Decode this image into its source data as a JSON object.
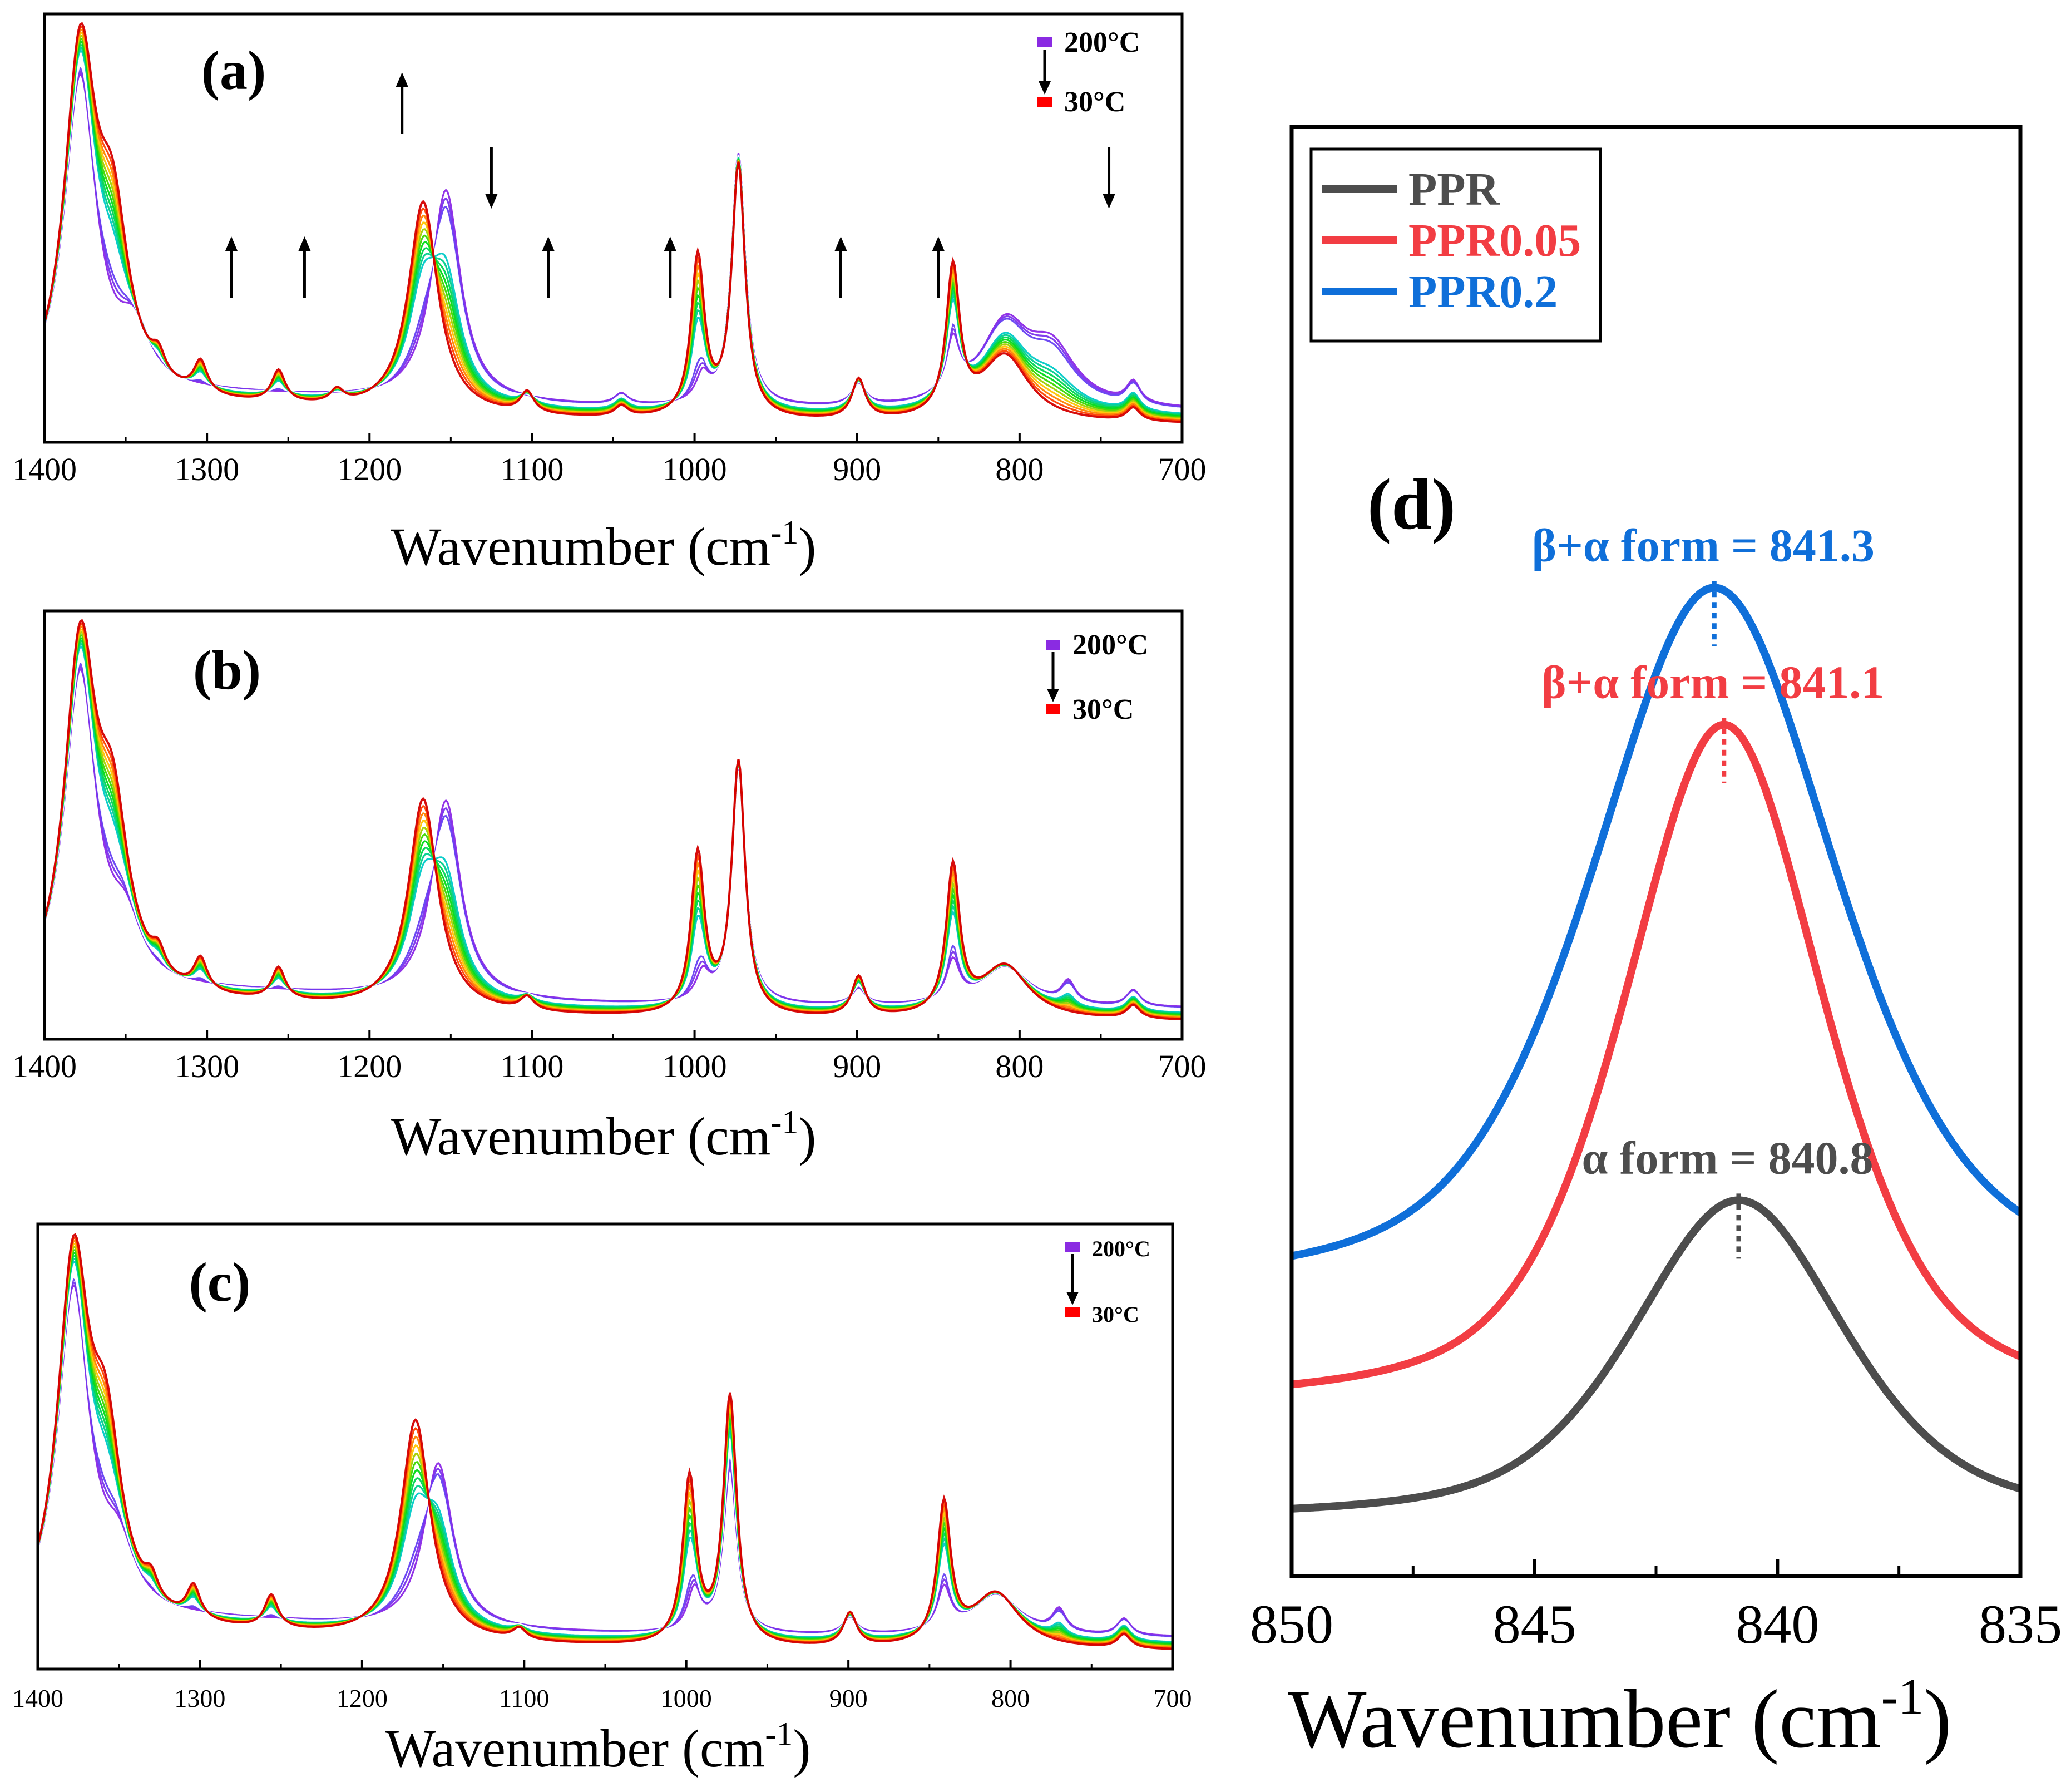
{
  "chart_data": [
    {
      "panel": "(a)",
      "type": "line",
      "xlabel": "Wavenumber (cm",
      "xlabel_sup": "-1",
      "xlabel_close": ")",
      "xlim": [
        1400,
        700
      ],
      "xticks": [
        "1400",
        "1300",
        "1200",
        "1100",
        "1000",
        "900",
        "800",
        "700"
      ],
      "legend": {
        "top": "200",
        "top_unit": "°C",
        "bottom": "30",
        "bottom_unit": "°C",
        "top_color": "#8a2be2",
        "bottom_color": "#ff0000"
      },
      "arrows": [
        {
          "x": 1285,
          "dir": "up"
        },
        {
          "x": 1240,
          "dir": "up"
        },
        {
          "x": 1180,
          "dir": "up"
        },
        {
          "x": 1125,
          "dir": "down"
        },
        {
          "x": 1090,
          "dir": "up"
        },
        {
          "x": 1015,
          "dir": "up"
        },
        {
          "x": 910,
          "dir": "up"
        },
        {
          "x": 850,
          "dir": "up"
        },
        {
          "x": 745,
          "dir": "down"
        }
      ],
      "peaks_cold": [
        [
          1378,
          1.3
        ],
        [
          1358,
          0.6
        ],
        [
          1330,
          0.08
        ],
        [
          1304,
          0.12
        ],
        [
          1256,
          0.12
        ],
        [
          1220,
          0.05
        ],
        [
          1167,
          0.8
        ],
        [
          1103,
          0.08
        ],
        [
          1045,
          0.04
        ],
        [
          998,
          0.6
        ],
        [
          973,
          0.95
        ],
        [
          899,
          0.15
        ],
        [
          841,
          0.55
        ],
        [
          809,
          0.25
        ],
        [
          730,
          0.05
        ]
      ],
      "peaks_hot": [
        [
          1378,
          1.2
        ],
        [
          1345,
          0.2
        ],
        [
          1153,
          0.8
        ],
        [
          1045,
          0.04
        ],
        [
          973,
          0.95
        ],
        [
          995,
          0.1
        ],
        [
          899,
          0.08
        ],
        [
          841,
          0.2
        ],
        [
          809,
          0.3
        ],
        [
          780,
          0.2
        ],
        [
          730,
          0.08
        ]
      ],
      "n_curves": 18
    },
    {
      "panel": "(b)",
      "type": "line",
      "xlabel": "Wavenumber (cm",
      "xlabel_sup": "-1",
      "xlabel_close": ")",
      "xlim": [
        1400,
        700
      ],
      "xticks": [
        "1400",
        "1300",
        "1200",
        "1100",
        "1000",
        "900",
        "800",
        "700"
      ],
      "legend": {
        "top": "200",
        "top_unit": "°C",
        "bottom": "30",
        "bottom_unit": "°C",
        "top_color": "#8a2be2",
        "bottom_color": "#ff0000"
      },
      "arrows": [],
      "peaks_cold": [
        [
          1378,
          1.3
        ],
        [
          1358,
          0.6
        ],
        [
          1330,
          0.08
        ],
        [
          1304,
          0.12
        ],
        [
          1256,
          0.12
        ],
        [
          1167,
          0.8
        ],
        [
          1103,
          0.05
        ],
        [
          998,
          0.6
        ],
        [
          973,
          0.95
        ],
        [
          899,
          0.15
        ],
        [
          841,
          0.55
        ],
        [
          809,
          0.2
        ],
        [
          730,
          0.05
        ]
      ],
      "peaks_hot": [
        [
          1378,
          1.2
        ],
        [
          1350,
          0.2
        ],
        [
          1153,
          0.75
        ],
        [
          973,
          0.9
        ],
        [
          995,
          0.1
        ],
        [
          899,
          0.06
        ],
        [
          841,
          0.15
        ],
        [
          809,
          0.15
        ],
        [
          770,
          0.08
        ],
        [
          730,
          0.06
        ]
      ],
      "n_curves": 18
    },
    {
      "panel": "(c)",
      "type": "line",
      "xlabel": "Wavenumber (cm",
      "xlabel_sup": "-1",
      "xlabel_close": ")",
      "xlim": [
        1400,
        700
      ],
      "xticks": [
        "1400",
        "1300",
        "1200",
        "1100",
        "1000",
        "900",
        "800",
        "700"
      ],
      "legend": {
        "top": "200",
        "top_unit": "°C",
        "bottom": "30",
        "bottom_unit": "°C",
        "top_color": "#8a2be2",
        "bottom_color": "#ff0000"
      },
      "arrows": [],
      "peaks_cold": [
        [
          1378,
          1.3
        ],
        [
          1358,
          0.6
        ],
        [
          1330,
          0.08
        ],
        [
          1304,
          0.12
        ],
        [
          1256,
          0.12
        ],
        [
          1167,
          0.8
        ],
        [
          1103,
          0.04
        ],
        [
          998,
          0.6
        ],
        [
          973,
          0.9
        ],
        [
          899,
          0.12
        ],
        [
          841,
          0.5
        ],
        [
          809,
          0.2
        ],
        [
          730,
          0.05
        ]
      ],
      "peaks_hot": [
        [
          1378,
          1.2
        ],
        [
          1350,
          0.2
        ],
        [
          1153,
          0.6
        ],
        [
          973,
          0.6
        ],
        [
          995,
          0.15
        ],
        [
          899,
          0.06
        ],
        [
          841,
          0.15
        ],
        [
          809,
          0.15
        ],
        [
          770,
          0.08
        ],
        [
          730,
          0.06
        ]
      ],
      "n_curves": 18
    },
    {
      "panel": "(d)",
      "type": "line",
      "xlabel": "Wavenumber (cm",
      "xlabel_sup": "-1",
      "xlabel_close": ")",
      "xlim": [
        850,
        835
      ],
      "xticks": [
        "850",
        "845",
        "840",
        "835"
      ],
      "series": [
        {
          "name": "PPR",
          "color": "#4d4d4d",
          "peak_x": 840.8,
          "fwhm": 5.2,
          "base": 0.06,
          "amp": 0.72
        },
        {
          "name": "PPR0.05",
          "color": "#f23d43",
          "peak_x": 841.1,
          "fwhm": 4.9,
          "base": 0.35,
          "amp": 1.54
        },
        {
          "name": "PPR0.2",
          "color": "#0f6fd9",
          "peak_x": 841.3,
          "fwhm": 6.0,
          "base": 0.65,
          "amp": 1.56
        }
      ],
      "annotations": [
        {
          "text": "α form = 840.8",
          "x": 840.8,
          "color": "#4d4d4d"
        },
        {
          "text": "β+α form = 841.1",
          "x": 841.1,
          "color": "#f23d43"
        },
        {
          "text": "β+α form = 841.3",
          "x": 841.3,
          "color": "#0f6fd9"
        }
      ]
    }
  ]
}
